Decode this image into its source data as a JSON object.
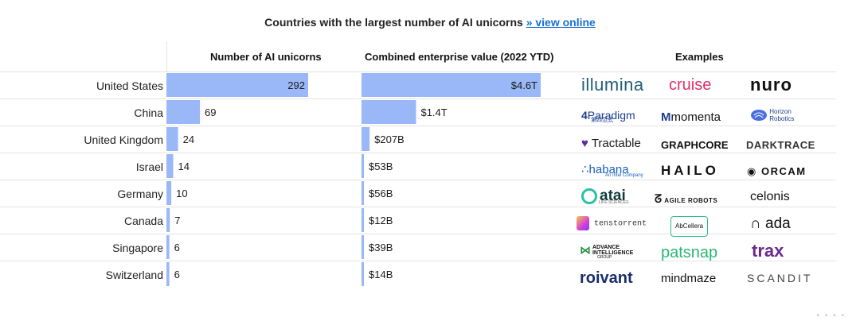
{
  "header": {
    "title": "Countries with the largest number of AI unicorns",
    "link": "» view online",
    "col_unicorns": "Number of AI  unicorns",
    "col_value": "Combined enterprise value (2022 YTD)",
    "col_examples": "Examples"
  },
  "chart_data": {
    "type": "bar",
    "title": "Countries with the largest number of AI unicorns",
    "categories": [
      "United States",
      "China",
      "United Kingdom",
      "Israel",
      "Germany",
      "Canada",
      "Singapore",
      "Switzerland"
    ],
    "series": [
      {
        "name": "Number of AI unicorns",
        "values": [
          292,
          69,
          24,
          14,
          10,
          7,
          6,
          6
        ],
        "labels": [
          "292",
          "69",
          "24",
          "14",
          "10",
          "7",
          "6",
          "6"
        ]
      },
      {
        "name": "Combined enterprise value (2022 YTD)",
        "unit": "USD billions",
        "values": [
          4600,
          1400,
          207,
          53,
          56,
          12,
          39,
          14
        ],
        "labels": [
          "$4.6T",
          "$1.4T",
          "$207B",
          "$53B",
          "$56B",
          "$12B",
          "$39B",
          "$14B"
        ]
      }
    ],
    "xlabel": "",
    "ylabel": "",
    "bar_color": "#9ab8f7"
  },
  "examples": [
    [
      "illumina",
      "cruise",
      "nuro"
    ],
    [
      "Paradigm",
      "momenta",
      "Horizon Robotics"
    ],
    [
      "Tractable",
      "GRAPHCORE",
      "DARKTRACE"
    ],
    [
      "habana",
      "HAILO",
      "ORCAM"
    ],
    [
      "atai",
      "AGILE ROBOTS",
      "celonis"
    ],
    [
      "tenstorrent",
      "AbCellera",
      "ada"
    ],
    [
      "ADVANCE INTELLIGENCE",
      "patsnap",
      "trax"
    ],
    [
      "roivant",
      "mindmaze",
      "SCANDIT"
    ]
  ],
  "example_sublabels": {
    "paradigm": "第四范式",
    "habana": "An Intel Company",
    "atai": "LIFE SCIENCES",
    "advance": "GROUP"
  },
  "icons": {
    "paradigm": "4",
    "momenta": "M",
    "horizon": "brain-icon",
    "tractable": "heart-icon",
    "habana": "dots-icon",
    "orcam": "eye-icon",
    "agile": "robot-icon",
    "tenstorrent": "chip-icon",
    "ada": "ada-icon",
    "advance": "arrow-icon"
  },
  "footer": {
    "dots": "• • • •"
  }
}
